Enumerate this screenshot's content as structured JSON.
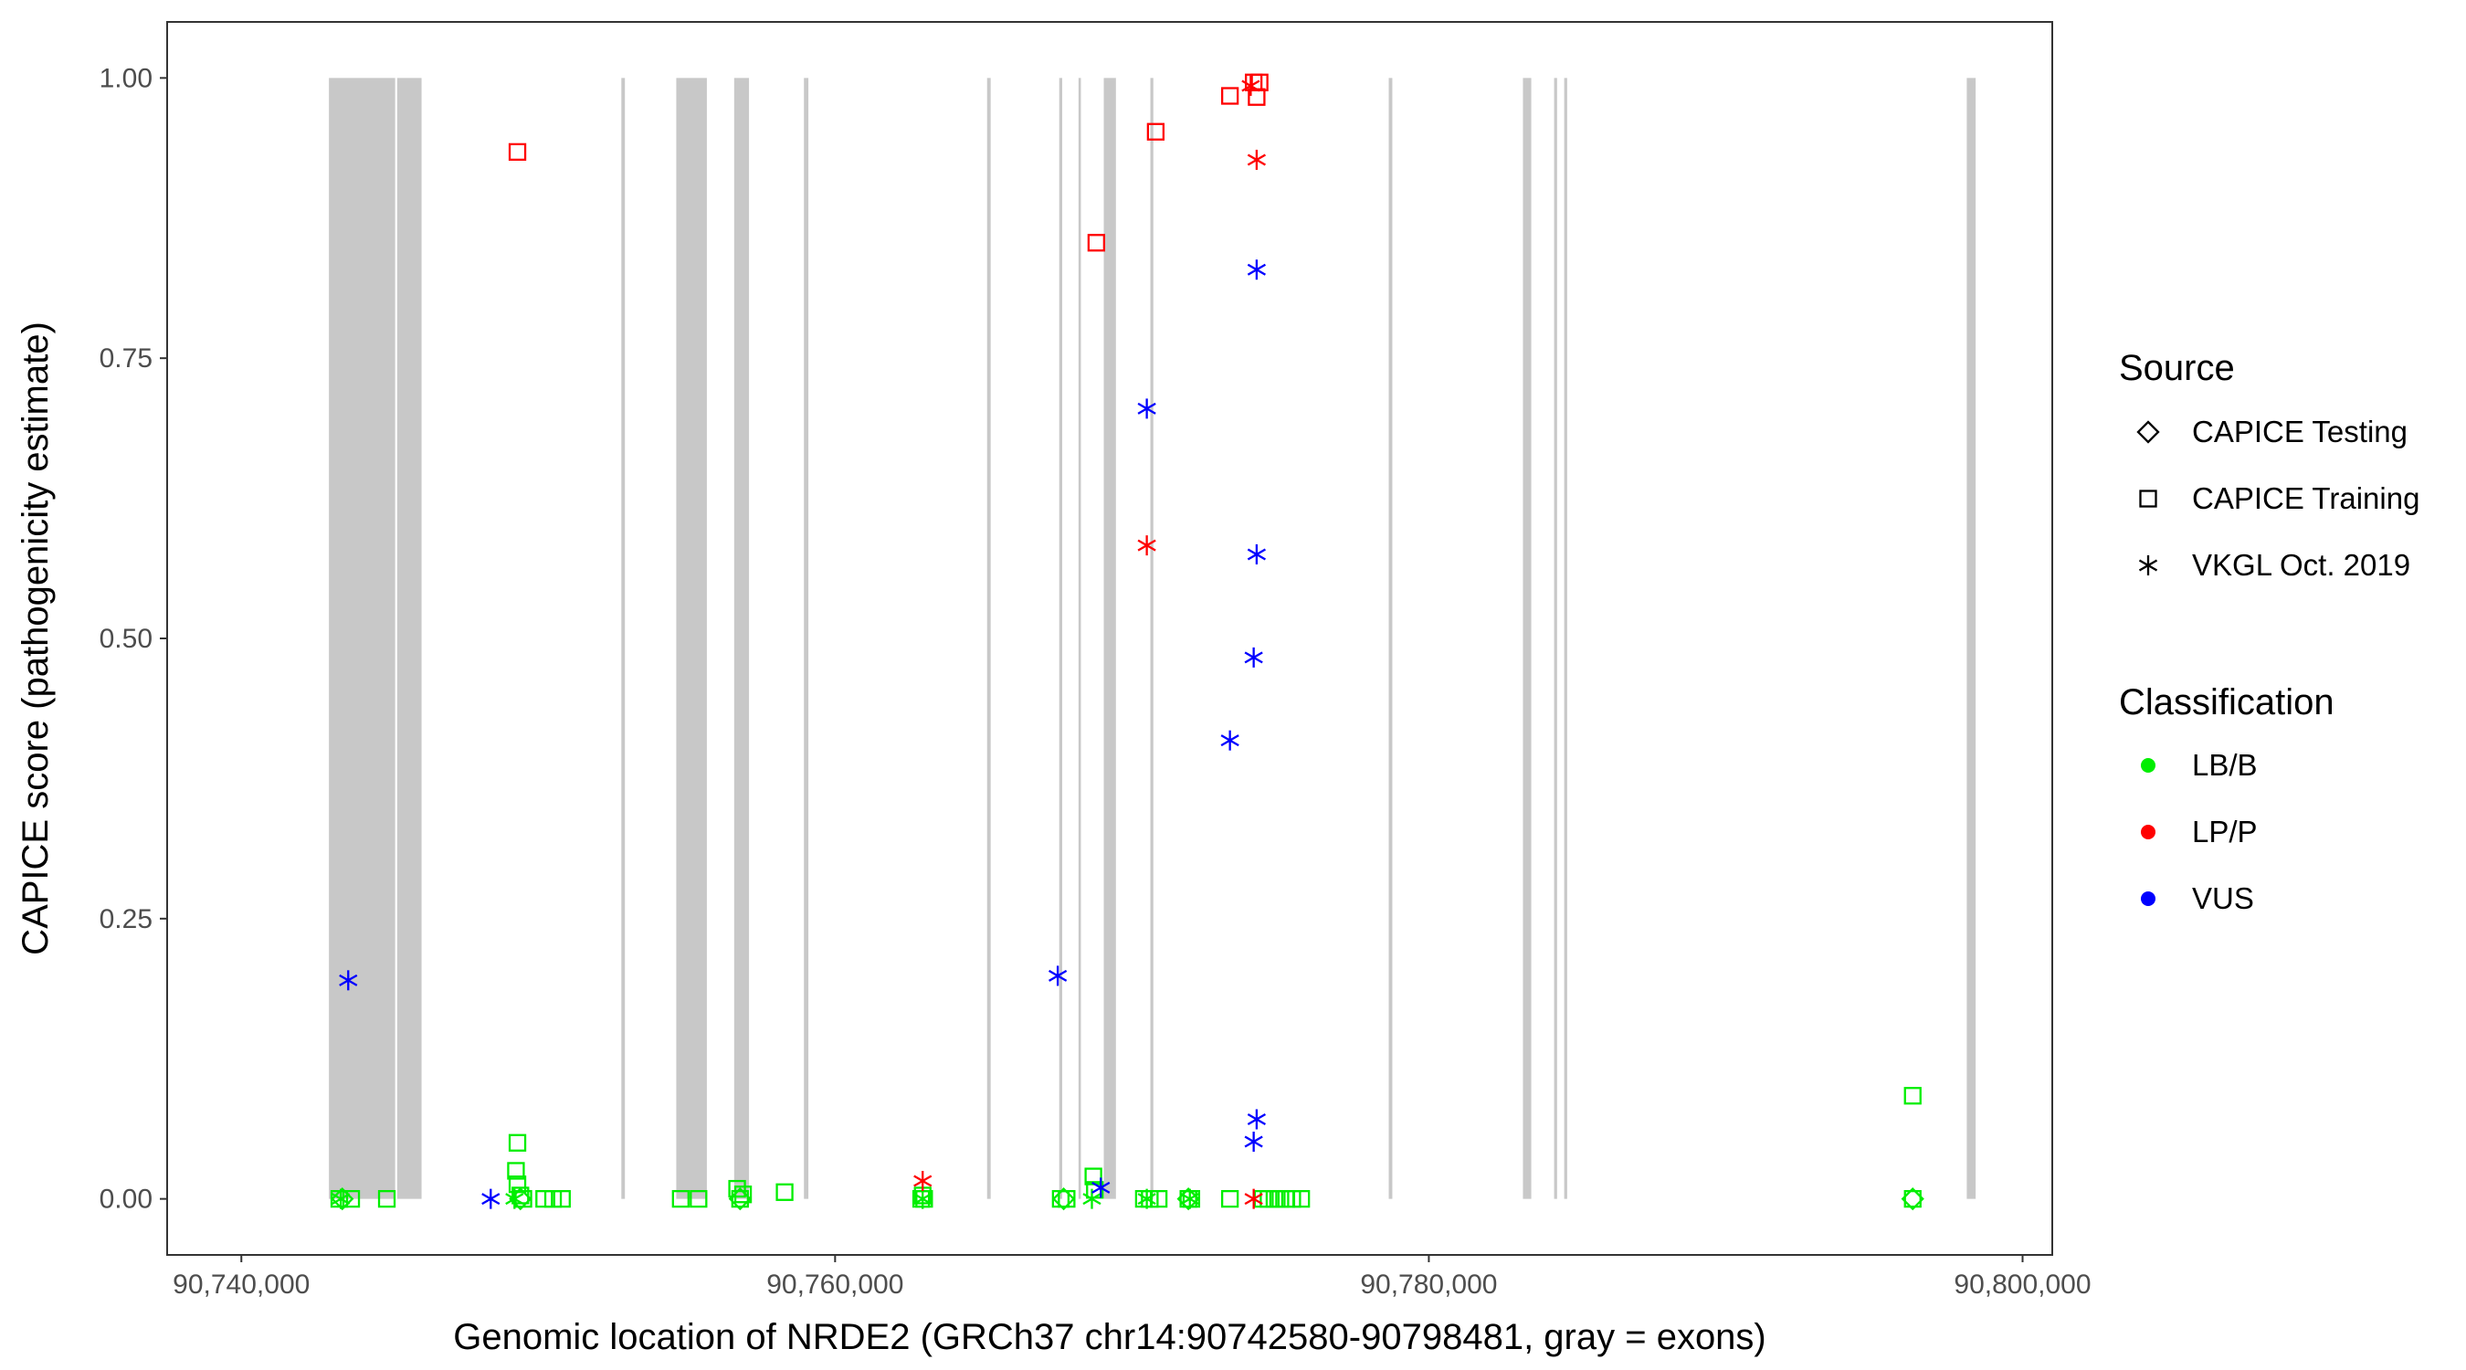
{
  "chart_data": {
    "type": "scatter",
    "title": "",
    "xlabel": "Genomic location of NRDE2 (GRCh37 chr14:90742580-90798481, gray = exons)",
    "ylabel": "CAPICE score (pathogenicity estimate)",
    "xlim": [
      90737500,
      90801000
    ],
    "ylim": [
      -0.05,
      1.05
    ],
    "x_ticks": [
      90740000,
      90760000,
      90780000,
      90800000
    ],
    "x_tick_labels": [
      "90,740,000",
      "90,760,000",
      "90,780,000",
      "90,800,000"
    ],
    "y_ticks": [
      0,
      0.25,
      0.5,
      0.75,
      1
    ],
    "y_tick_labels": [
      "0.00",
      "0.25",
      "0.50",
      "0.75",
      "1.00"
    ],
    "grid": false,
    "legend_position": "right",
    "exons": [
      [
        90742950,
        90745180
      ],
      [
        90745250,
        90746070
      ],
      [
        90752800,
        90752920
      ],
      [
        90754650,
        90755680
      ],
      [
        90756600,
        90757100
      ],
      [
        90758950,
        90759100
      ],
      [
        90765120,
        90765240
      ],
      [
        90767550,
        90767650
      ],
      [
        90768200,
        90768280
      ],
      [
        90769050,
        90769460
      ],
      [
        90770620,
        90770720
      ],
      [
        90778650,
        90778770
      ],
      [
        90783170,
        90783450
      ],
      [
        90784220,
        90784320
      ],
      [
        90784560,
        90784660
      ],
      [
        90798120,
        90798420
      ]
    ],
    "legend": {
      "source": {
        "title": "Source",
        "items": [
          {
            "label": "CAPICE Testing",
            "shape": "diamond"
          },
          {
            "label": "CAPICE Training",
            "shape": "square"
          },
          {
            "label": "VKGL Oct. 2019",
            "shape": "asterisk"
          }
        ]
      },
      "classification": {
        "title": "Classification",
        "items": [
          {
            "label": "LB/B",
            "color": "#00ee00"
          },
          {
            "label": "LP/P",
            "color": "#ff0000"
          },
          {
            "label": "VUS",
            "color": "#0000ff"
          }
        ]
      }
    },
    "series": [
      {
        "source": "CAPICE Training",
        "classification": "LB/B",
        "points": [
          [
            90743300,
            0.0
          ],
          [
            90743700,
            0.0
          ],
          [
            90744900,
            0.0
          ],
          [
            90749300,
            0.05
          ],
          [
            90749250,
            0.025
          ],
          [
            90749300,
            0.013
          ],
          [
            90749400,
            0.003
          ],
          [
            90749500,
            0.0
          ],
          [
            90750200,
            0.0
          ],
          [
            90750500,
            0.0
          ],
          [
            90750800,
            0.0
          ],
          [
            90754800,
            0.0
          ],
          [
            90755400,
            0.0
          ],
          [
            90756700,
            0.009
          ],
          [
            90756800,
            0.0
          ],
          [
            90756900,
            0.004
          ],
          [
            90758300,
            0.006
          ],
          [
            90762900,
            0.0
          ],
          [
            90762950,
            0.003
          ],
          [
            90763000,
            0.0
          ],
          [
            90767600,
            0.0
          ],
          [
            90767800,
            0.0
          ],
          [
            90768700,
            0.02
          ],
          [
            90768750,
            0.008
          ],
          [
            90770400,
            0.0
          ],
          [
            90770600,
            0.0
          ],
          [
            90770900,
            0.0
          ],
          [
            90771900,
            0.0
          ],
          [
            90772000,
            0.0
          ],
          [
            90773300,
            0.0
          ],
          [
            90774400,
            0.0
          ],
          [
            90774600,
            0.0
          ],
          [
            90774800,
            0.0
          ],
          [
            90775000,
            0.0
          ],
          [
            90775200,
            0.0
          ],
          [
            90775400,
            0.0
          ],
          [
            90775700,
            0.0
          ],
          [
            90796300,
            0.092
          ],
          [
            90796300,
            0.0
          ]
        ]
      },
      {
        "source": "CAPICE Training",
        "classification": "LP/P",
        "points": [
          [
            90749300,
            0.934
          ],
          [
            90768800,
            0.853
          ],
          [
            90770800,
            0.952
          ],
          [
            90773300,
            0.984
          ],
          [
            90774100,
            0.996
          ],
          [
            90774300,
            0.996
          ],
          [
            90774200,
            0.983
          ]
        ]
      },
      {
        "source": "CAPICE Testing",
        "classification": "LB/B",
        "points": [
          [
            90743400,
            0.0
          ],
          [
            90749400,
            0.0
          ],
          [
            90756800,
            0.0
          ],
          [
            90767700,
            0.0
          ],
          [
            90771900,
            0.0
          ],
          [
            90796300,
            0.0
          ]
        ]
      },
      {
        "source": "VKGL Oct. 2019",
        "classification": "LB/B",
        "points": [
          [
            90743350,
            0.0
          ],
          [
            90749200,
            0.0
          ],
          [
            90762950,
            0.0
          ],
          [
            90768650,
            0.0
          ],
          [
            90770500,
            0.0
          ],
          [
            90771950,
            0.0
          ]
        ]
      },
      {
        "source": "VKGL Oct. 2019",
        "classification": "LP/P",
        "points": [
          [
            90762950,
            0.016
          ],
          [
            90770500,
            0.583
          ],
          [
            90774200,
            0.927
          ],
          [
            90774000,
            0.993
          ],
          [
            90774100,
            0.0
          ]
        ]
      },
      {
        "source": "VKGL Oct. 2019",
        "classification": "VUS",
        "points": [
          [
            90743600,
            0.195
          ],
          [
            90748400,
            0.0
          ],
          [
            90767500,
            0.199
          ],
          [
            90768950,
            0.01
          ],
          [
            90770500,
            0.705
          ],
          [
            90773300,
            0.409
          ],
          [
            90774100,
            0.483
          ],
          [
            90774200,
            0.575
          ],
          [
            90774200,
            0.829
          ],
          [
            90774200,
            0.071
          ],
          [
            90774100,
            0.051
          ]
        ]
      }
    ]
  }
}
